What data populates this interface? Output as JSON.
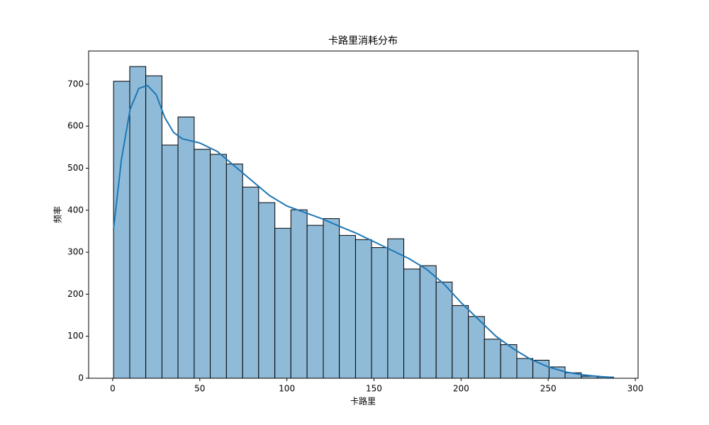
{
  "chart_data": {
    "type": "histogram",
    "title": "卡路里消耗分布",
    "x_label": "卡路里",
    "y_label": "频率",
    "bins": [
      0.5,
      9.8,
      19.0,
      28.3,
      37.5,
      46.8,
      56.0,
      65.3,
      74.6,
      83.8,
      93.1,
      102.3,
      111.6,
      120.9,
      130.1,
      139.4,
      148.6,
      157.9,
      167.1,
      176.4,
      185.7,
      194.9,
      204.2,
      213.4,
      222.7,
      232.0,
      241.2,
      250.5,
      259.7,
      269.0,
      278.2,
      287.5
    ],
    "counts": [
      707,
      742,
      720,
      555,
      622,
      545,
      533,
      510,
      455,
      418,
      357,
      401,
      364,
      380,
      340,
      330,
      311,
      332,
      260,
      268,
      229,
      173,
      147,
      93,
      80,
      47,
      43,
      27,
      13,
      5,
      3
    ],
    "color": "#8fbbd9",
    "edge_color": "#000000",
    "kde": {
      "color": "#1f77b4",
      "x": [
        0.5,
        5,
        10,
        15,
        20,
        25,
        30,
        35,
        40,
        50,
        60,
        70,
        80,
        90,
        100,
        110,
        120,
        130,
        140,
        150,
        160,
        170,
        180,
        190,
        200,
        210,
        220,
        230,
        240,
        250,
        260,
        270,
        280,
        287.5
      ],
      "values": [
        355,
        520,
        640,
        690,
        697,
        675,
        620,
        585,
        570,
        560,
        540,
        505,
        470,
        435,
        410,
        395,
        380,
        362,
        345,
        325,
        305,
        285,
        260,
        225,
        180,
        140,
        100,
        70,
        45,
        27,
        15,
        8,
        4,
        2
      ]
    },
    "xlim": [
      -13.8,
      301.6
    ],
    "xticks": [
      0,
      50,
      100,
      150,
      200,
      250,
      300
    ],
    "ylim": [
      0,
      779
    ],
    "yticks": [
      0,
      100,
      200,
      300,
      400,
      500,
      600,
      700
    ]
  }
}
